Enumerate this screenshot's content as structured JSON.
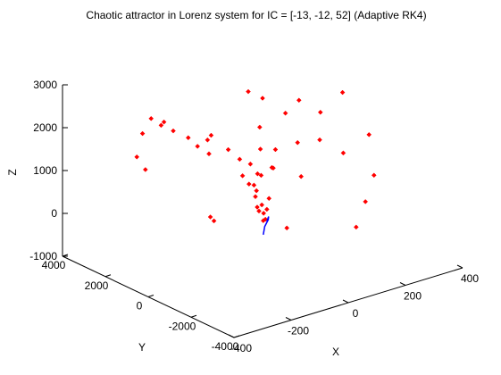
{
  "chart_data": {
    "type": "scatter",
    "title": "Chaotic attractor in Lorenz system for IC = [-13, -12, 52] (Adaptive RK4)",
    "xlabel": "X",
    "ylabel": "Y",
    "zlabel": "Z",
    "xlim": [
      -400,
      400
    ],
    "ylim": [
      -4000,
      4000
    ],
    "zlim": [
      -1000,
      3000
    ],
    "x_ticks": [
      "-400",
      "-200",
      "0",
      "200",
      "400"
    ],
    "y_ticks": [
      "4000",
      "2000",
      "0",
      "-2000",
      "-4000"
    ],
    "z_ticks": [
      "3000",
      "2000",
      "1000",
      "0",
      "-1000"
    ],
    "grid": false,
    "legend": "none",
    "series": [
      {
        "color": "#ff0000",
        "marker": "diamond",
        "points": [
          [
            -180,
            2800,
            2050
          ],
          [
            -160,
            2600,
            1900
          ],
          [
            -120,
            3000,
            1800
          ],
          [
            -150,
            3600,
            1450
          ],
          [
            -140,
            2300,
            1800
          ],
          [
            -110,
            2000,
            1650
          ],
          [
            -100,
            1700,
            1500
          ],
          [
            -90,
            1300,
            1400
          ],
          [
            -200,
            3200,
            1100
          ],
          [
            -60,
            1600,
            1700
          ],
          [
            -50,
            1900,
            1500
          ],
          [
            -30,
            1200,
            1400
          ],
          [
            -20,
            800,
            1250
          ],
          [
            10,
            700,
            1100
          ],
          [
            20,
            500,
            900
          ],
          [
            0,
            400,
            700
          ],
          [
            -10,
            200,
            500
          ],
          [
            5,
            100,
            300
          ],
          [
            15,
            0,
            200
          ],
          [
            -5,
            -100,
            0
          ],
          [
            10,
            300,
            100
          ],
          [
            25,
            200,
            -100
          ],
          [
            40,
            600,
            800
          ],
          [
            60,
            900,
            1300
          ],
          [
            80,
            1200,
            1700
          ],
          [
            100,
            2000,
            2300
          ],
          [
            120,
            1600,
            2200
          ],
          [
            140,
            800,
            2000
          ],
          [
            150,
            300,
            2400
          ],
          [
            180,
            -300,
            2200
          ],
          [
            220,
            -800,
            2700
          ],
          [
            200,
            -1100,
            1400
          ],
          [
            170,
            -400,
            1600
          ],
          [
            130,
            100,
            1500
          ],
          [
            90,
            600,
            1300
          ],
          [
            60,
            300,
            1000
          ],
          [
            40,
            100,
            1100
          ],
          [
            260,
            -1500,
            1800
          ],
          [
            240,
            -1600,
            300
          ],
          [
            120,
            -200,
            800
          ],
          [
            -130,
            700,
            150
          ],
          [
            -140,
            400,
            150
          ],
          [
            -200,
            2800,
            900
          ],
          [
            -40,
            400,
            1000
          ],
          [
            -25,
            300,
            800
          ],
          [
            -10,
            150,
            650
          ],
          [
            70,
            -200,
            -300
          ],
          [
            260,
            -900,
            -500
          ],
          [
            300,
            -1200,
            700
          ],
          [
            30,
            100,
            400
          ],
          [
            -15,
            50,
            300
          ],
          [
            0,
            -50,
            150
          ]
        ]
      },
      {
        "color": "#0000ff",
        "marker": "line",
        "points": [
          [
            -20,
            -300,
            -250
          ],
          [
            -10,
            -200,
            -200
          ],
          [
            0,
            -100,
            -150
          ],
          [
            10,
            -50,
            -100
          ],
          [
            20,
            0,
            -50
          ],
          [
            25,
            50,
            0
          ],
          [
            15,
            0,
            -80
          ]
        ]
      }
    ]
  }
}
